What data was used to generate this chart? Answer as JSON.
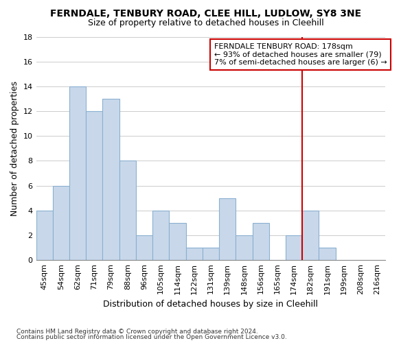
{
  "title": "FERNDALE, TENBURY ROAD, CLEE HILL, LUDLOW, SY8 3NE",
  "subtitle": "Size of property relative to detached houses in Cleehill",
  "xlabel": "Distribution of detached houses by size in Cleehill",
  "ylabel": "Number of detached properties",
  "footnote1": "Contains HM Land Registry data © Crown copyright and database right 2024.",
  "footnote2": "Contains public sector information licensed under the Open Government Licence v3.0.",
  "categories": [
    "45sqm",
    "54sqm",
    "62sqm",
    "71sqm",
    "79sqm",
    "88sqm",
    "96sqm",
    "105sqm",
    "114sqm",
    "122sqm",
    "131sqm",
    "139sqm",
    "148sqm",
    "156sqm",
    "165sqm",
    "174sqm",
    "182sqm",
    "191sqm",
    "199sqm",
    "208sqm",
    "216sqm"
  ],
  "values": [
    4,
    6,
    14,
    12,
    13,
    8,
    2,
    4,
    3,
    1,
    1,
    5,
    2,
    3,
    0,
    2,
    4,
    1,
    0,
    0,
    0
  ],
  "bar_color": "#c8d8ea",
  "bar_edge_color": "#8ab0d0",
  "background_color": "#ffffff",
  "plot_bg_color": "#ffffff",
  "grid_color": "#cccccc",
  "ylim": [
    0,
    18
  ],
  "yticks": [
    0,
    2,
    4,
    6,
    8,
    10,
    12,
    14,
    16,
    18
  ],
  "vline_color": "#cc0000",
  "annotation_title": "FERNDALE TENBURY ROAD: 178sqm",
  "annotation_line1": "← 93% of detached houses are smaller (79)",
  "annotation_line2": "7% of semi-detached houses are larger (6) →",
  "annotation_box_color": "#ffffff",
  "annotation_box_edge": "#cc0000",
  "title_fontsize": 10,
  "subtitle_fontsize": 9,
  "xlabel_fontsize": 9,
  "ylabel_fontsize": 9,
  "tick_fontsize": 8,
  "annotation_fontsize": 8,
  "footnote_fontsize": 6.5
}
